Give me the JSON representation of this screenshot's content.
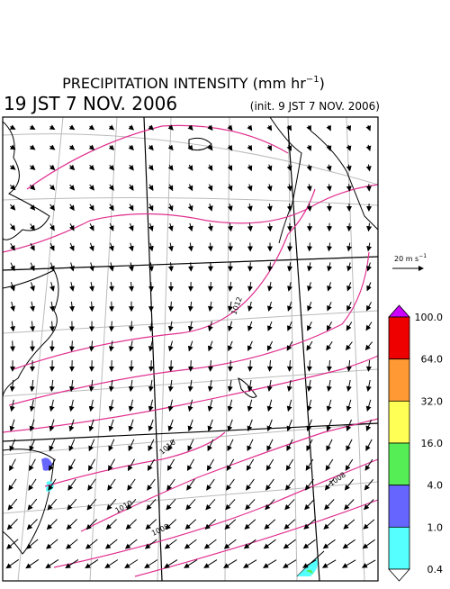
{
  "header": {
    "title": "PRECIPITATION INTENSITY (mm hr",
    "title_superscript": "−1",
    "title_end": ")",
    "valid_time": "19 JST 7 NOV. 2006",
    "init_time": "(init. 9 JST 7 NOV. 2006)"
  },
  "wind_legend": {
    "label": "20 m s",
    "superscript": "−1"
  },
  "colorbar": {
    "labels": [
      "100.0",
      "64.0",
      "32.0",
      "16.0",
      "4.0",
      "1.0",
      "0.4"
    ]
  },
  "isobar_labels": [
    "1012",
    "1010",
    "1010",
    "1008",
    "1008"
  ]
}
